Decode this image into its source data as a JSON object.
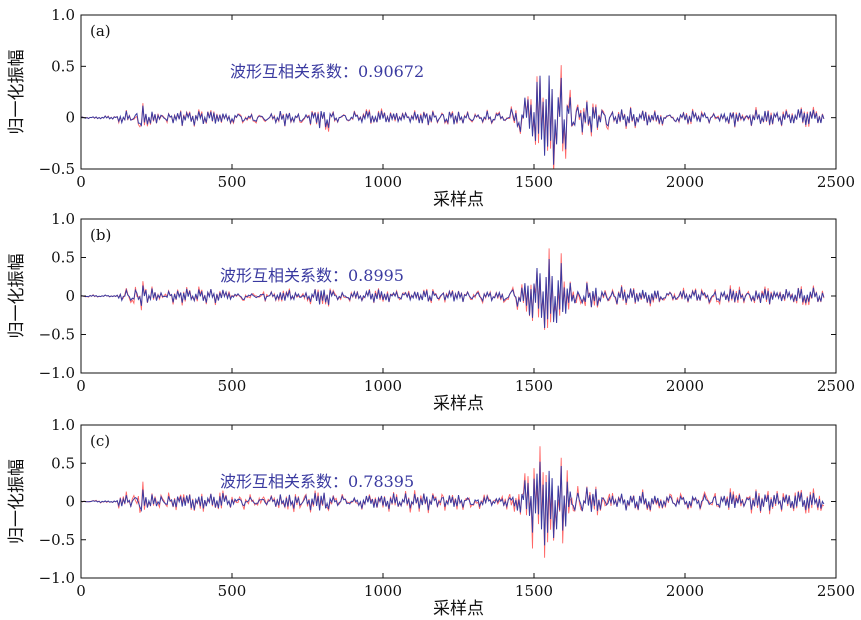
{
  "chart_data": [
    {
      "type": "line",
      "panel_label": "(a)",
      "annotation": "波形互相关系数：0.90672",
      "xlabel": "采样点",
      "ylabel": "归一化振幅",
      "xlim": [
        0,
        2500
      ],
      "ylim": [
        -0.5,
        1.0
      ],
      "xticks": [
        "0",
        "500",
        "1000",
        "1500",
        "2000",
        "2500"
      ],
      "yticks": [
        "−0.5",
        "0",
        "0.5",
        "1.0"
      ],
      "series_colors": [
        "#ff6666",
        "#3a3aa0"
      ],
      "annotation_color": "#3a3aa0",
      "grid": false
    },
    {
      "type": "line",
      "panel_label": "(b)",
      "annotation": "波形互相关系数：0.8995",
      "xlabel": "采样点",
      "ylabel": "归一化振幅",
      "xlim": [
        0,
        2500
      ],
      "ylim": [
        -1.0,
        1.0
      ],
      "xticks": [
        "0",
        "500",
        "1000",
        "1500",
        "2000",
        "2500"
      ],
      "yticks": [
        "−1.0",
        "−0.5",
        "0",
        "0.5",
        "1.0"
      ],
      "series_colors": [
        "#ff6666",
        "#3a3aa0"
      ],
      "annotation_color": "#3a3aa0",
      "grid": false
    },
    {
      "type": "line",
      "panel_label": "(c)",
      "annotation": "波形互相关系数：0.78395",
      "xlabel": "采样点",
      "ylabel": "归一化振幅",
      "xlim": [
        0,
        2500
      ],
      "ylim": [
        -1.0,
        1.0
      ],
      "xticks": [
        "0",
        "500",
        "1000",
        "1500",
        "2000",
        "2500"
      ],
      "yticks": [
        "−1.0",
        "−0.5",
        "0",
        "0.5",
        "1.0"
      ],
      "series_colors": [
        "#ff6666",
        "#3a3aa0"
      ],
      "annotation_color": "#3a3aa0",
      "grid": false
    }
  ]
}
